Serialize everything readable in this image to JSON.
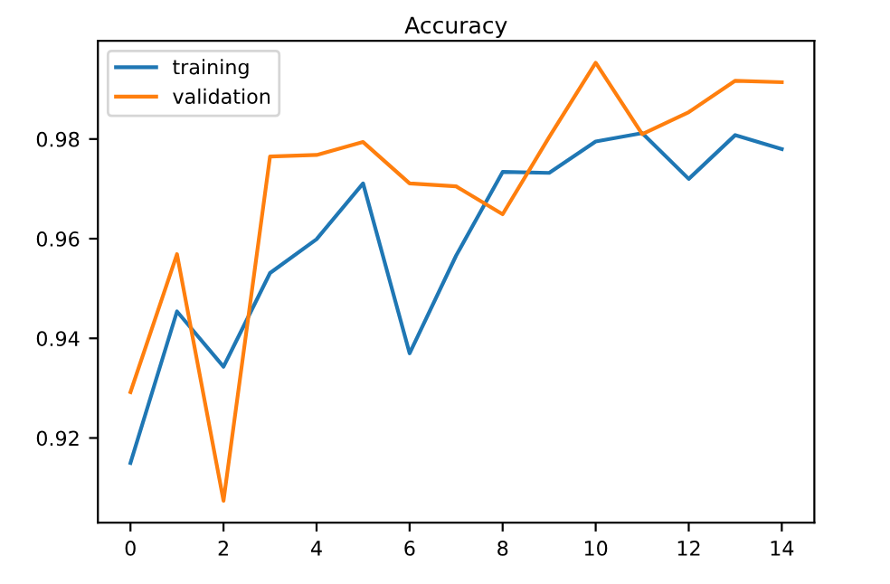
{
  "chart_data": {
    "type": "line",
    "title": "Accuracy",
    "x": [
      0,
      1,
      2,
      3,
      4,
      5,
      6,
      7,
      8,
      9,
      10,
      11,
      12,
      13,
      14
    ],
    "series": [
      {
        "name": "training",
        "color": "#1f77b4",
        "values": [
          0.915,
          0.9454,
          0.9343,
          0.9531,
          0.9599,
          0.9711,
          0.937,
          0.9566,
          0.9734,
          0.9732,
          0.9795,
          0.9812,
          0.972,
          0.9808,
          0.978
        ]
      },
      {
        "name": "validation",
        "color": "#ff7f0e",
        "values": [
          0.9292,
          0.9569,
          0.9074,
          0.9765,
          0.9768,
          0.9794,
          0.9711,
          0.9705,
          0.9649,
          0.9804,
          0.9953,
          0.981,
          0.9854,
          0.9917,
          0.9914
        ]
      }
    ],
    "xlim": [
      -0.7,
      14.7
    ],
    "ylim": [
      0.903,
      0.9997
    ],
    "xticks": [
      0,
      2,
      4,
      6,
      8,
      10,
      12,
      14
    ],
    "yticks": [
      0.92,
      0.94,
      0.96,
      0.98
    ],
    "grid": false,
    "legend": "top left",
    "line_style": "solid",
    "marker": "none"
  }
}
